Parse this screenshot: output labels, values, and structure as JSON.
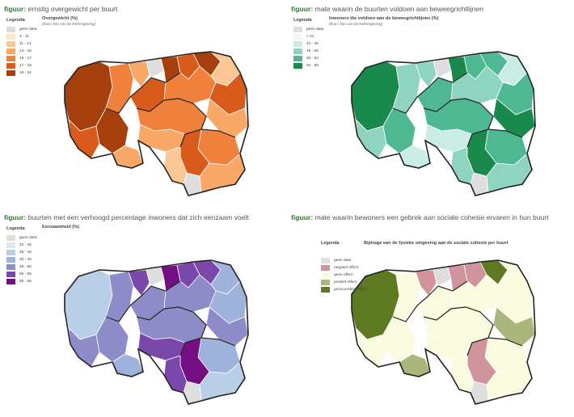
{
  "panels": [
    {
      "title_prefix": "figuur:",
      "title": " ernstig overgewicht per buurt",
      "legend_title": "Legenda",
      "variable": "Overgewicht (%)",
      "source": "(bron: foto van de leefomgeving)",
      "legend": [
        {
          "label": "geen data",
          "color": "#dedede"
        },
        {
          "label": "4 - 11",
          "color": "#fde3c8"
        },
        {
          "label": "11 - 13",
          "color": "#fbc594"
        },
        {
          "label": "13 - 15",
          "color": "#f9a867"
        },
        {
          "label": "15 - 17",
          "color": "#f0813c"
        },
        {
          "label": "17 - 19",
          "color": "#d95b1c"
        },
        {
          "label": "19 - 31",
          "color": "#a53f0c"
        }
      ]
    },
    {
      "title_prefix": "figuur:",
      "title": " mate waarin de buurten voldoen aan beweegrichtlijnen",
      "legend_title": "Legenda",
      "variable": "Inwoners die voldoen aan de beweegrichtlijnen (%)",
      "source": "(bron: foto van de leefomgeving)",
      "legend": [
        {
          "label": "geen data",
          "color": "#dedede"
        },
        {
          "label": "< 41",
          "color": "#eef8f6"
        },
        {
          "label": "41 - 46",
          "color": "#c9ece4"
        },
        {
          "label": "46 - 50",
          "color": "#8fd4c0"
        },
        {
          "label": "50 - 54",
          "color": "#4db891"
        },
        {
          "label": "54 - 59",
          "color": "#1a8a4c"
        }
      ]
    },
    {
      "title_prefix": "figuur:",
      "title": " buurten met een verhoogd percentage inwoners dat zich eenzaam voelt",
      "legend_title": "Legenda",
      "variable": "Eenzaamheid (%)",
      "source": "",
      "legend": [
        {
          "label": "geen data",
          "color": "#dedede"
        },
        {
          "label": "22 - 35",
          "color": "#dde8f3"
        },
        {
          "label": "35 - 40",
          "color": "#b9cfe8"
        },
        {
          "label": "40 - 45",
          "color": "#9eb2dc"
        },
        {
          "label": "45 - 50",
          "color": "#8e8cc8"
        },
        {
          "label": "50 - 55",
          "color": "#7a47aa"
        },
        {
          "label": "55 - 60",
          "color": "#730f82"
        }
      ]
    },
    {
      "title_prefix": "figuur:",
      "title": " mate waarin bewoners een gebrek aan sociale cohesie ervaren in hun buurt",
      "legend_title": "Legenda",
      "variable": "Bijdrage van de fysieke omgeving aan de sociale cohesie per buurt",
      "source": "",
      "legend": [
        {
          "label": "geen data",
          "color": "#dedede"
        },
        {
          "label": "negatief effect",
          "color": "#d1949c"
        },
        {
          "label": "geen effect",
          "color": "#fbfbe0"
        },
        {
          "label": "positief effect",
          "color": "#a9b87a"
        },
        {
          "label": "groot positief effect",
          "color": "#5d7a22"
        }
      ]
    }
  ]
}
